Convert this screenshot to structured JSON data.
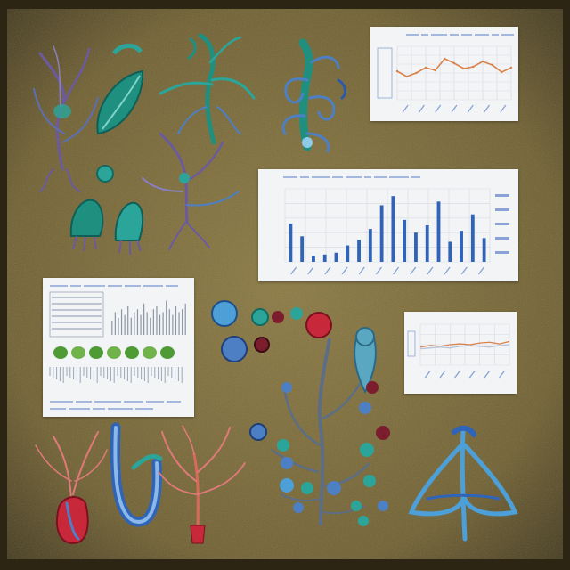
{
  "palette": {
    "board": "#7b6a35",
    "board_dark": "#4a3d1f",
    "card": "#f3f4f6",
    "grid": "#d6dbe3",
    "line_orange": "#d9824a",
    "bar_blue": "#2f64b8",
    "axis_text": "#8aa3d6",
    "teal": "#2ba59a",
    "blue": "#4d7fc4",
    "purple": "#6c5aa0",
    "red": "#c7283a",
    "pink": "#e07a7a"
  },
  "illustrations": [
    {
      "name": "purple-neuron-cluster-illustration"
    },
    {
      "name": "teal-leaf-illustration"
    },
    {
      "name": "teal-neuron-tree-illustration"
    },
    {
      "name": "blue-coiled-organism-illustration"
    },
    {
      "name": "teal-bell-pair-illustration"
    },
    {
      "name": "purple-dendrite-illustration"
    },
    {
      "name": "berry-branch-illustration"
    },
    {
      "name": "red-root-bulb-illustration"
    },
    {
      "name": "blue-u-tube-illustration"
    },
    {
      "name": "red-coral-root-illustration"
    },
    {
      "name": "blue-tripod-structure-illustration"
    }
  ],
  "cards": {
    "line_chart": {
      "chart_data": {
        "type": "line",
        "series": [
          {
            "values": [
              3.2,
              2.6,
              3.0,
              3.6,
              3.3,
              4.6,
              4.1,
              3.5,
              3.7,
              4.3,
              3.9,
              3.1,
              3.6
            ]
          }
        ],
        "ylim": [
          0,
          6
        ],
        "grid": true
      }
    },
    "bar_chart": {
      "chart_data": {
        "type": "bar",
        "values": [
          2.1,
          1.4,
          0.3,
          0.4,
          0.5,
          0.9,
          1.2,
          1.8,
          3.1,
          3.6,
          2.3,
          1.6,
          2.0,
          3.3,
          1.1,
          1.7,
          2.6,
          1.3
        ],
        "ylim": [
          0,
          4
        ],
        "grid": true
      }
    },
    "small_line_chart": {
      "chart_data": {
        "type": "line",
        "series": [
          {
            "values": [
              2.2,
              2.4,
              2.3,
              2.5,
              2.6,
              2.5,
              2.7,
              2.8,
              2.6,
              2.9
            ]
          },
          {
            "values": [
              2.0,
              2.1,
              2.2,
              2.1,
              2.3,
              2.4,
              2.3,
              2.2,
              2.4,
              2.5
            ]
          }
        ],
        "ylim": [
          0,
          5
        ],
        "grid": true
      }
    },
    "document_card": {
      "green_blobs": 7,
      "bars": [
        5,
        8,
        6,
        9,
        7,
        10,
        6,
        8,
        9,
        7,
        11,
        8,
        6,
        9,
        10,
        7,
        8,
        12,
        9,
        7,
        10,
        8,
        9,
        11
      ]
    }
  }
}
